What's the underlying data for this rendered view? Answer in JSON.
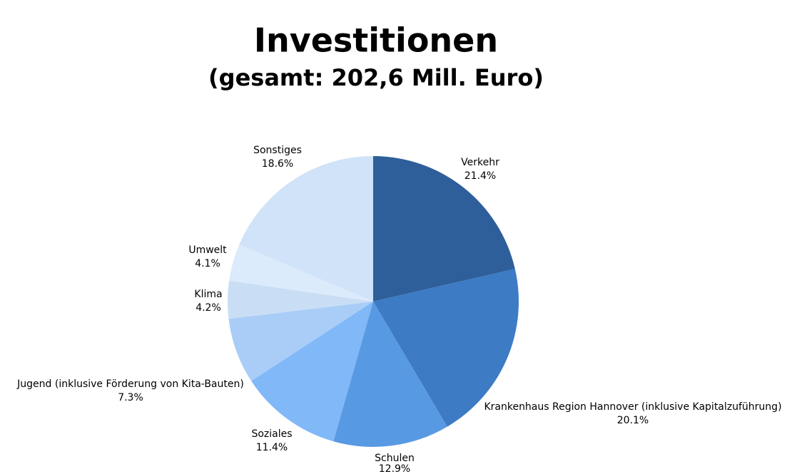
{
  "chart_data": {
    "type": "pie",
    "title": "Investitionen",
    "subtitle": "(gesamt: 202,6 Mill. Euro)",
    "categories": [
      "Verkehr",
      "Krankenhaus Region Hannover (inklusive Kapitalzuführung)",
      "Schulen",
      "Soziales",
      "Jugend (inklusive Förderung von Kita-Bauten)",
      "Klima",
      "Umwelt",
      "Sonstiges"
    ],
    "values": [
      21.4,
      20.1,
      12.9,
      11.4,
      7.3,
      4.2,
      4.1,
      18.6
    ],
    "value_labels": [
      "21.4%",
      "20.1%",
      "12.9%",
      "11.4%",
      "7.3%",
      "4.2%",
      "4.1%",
      "18.6%"
    ],
    "colors": [
      "#2e5f9a",
      "#3d7bc4",
      "#5899e3",
      "#80b8f8",
      "#a9cdf7",
      "#c9def4",
      "#dcebfb",
      "#d0e3f9"
    ]
  }
}
